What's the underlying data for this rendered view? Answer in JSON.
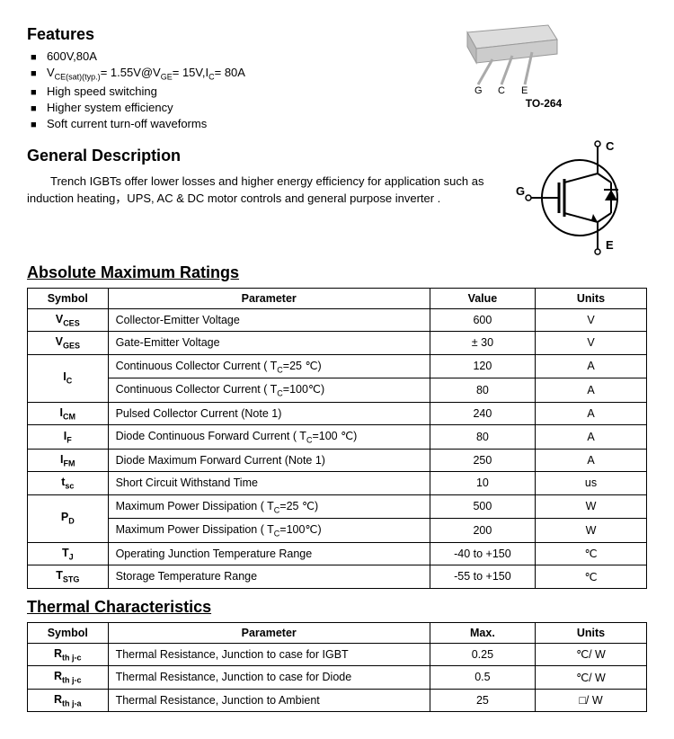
{
  "features": {
    "heading": "Features",
    "items": [
      "600V,80A",
      "V<CE(sat)(typ.)>= 1.55V@V<GE>= 15V,I<C>= 80A",
      "High speed switching",
      "Higher system efficiency",
      "Soft current turn-off waveforms"
    ]
  },
  "package": {
    "label": "TO-264",
    "pins": "G  C  E"
  },
  "gendesc": {
    "heading": "General Description",
    "text": "Trench IGBTs offer lower losses and higher energy efficiency for application such as induction heating，UPS, AC & DC motor controls and general purpose inverter ."
  },
  "symbol_pins": {
    "c": "C",
    "g": "G",
    "e": "E"
  },
  "amr": {
    "heading": "Absolute Maximum Ratings",
    "cols": [
      "Symbol",
      "Parameter",
      "Value",
      "Units"
    ],
    "rows": [
      {
        "sym": "V<CES>",
        "param": "Collector-Emitter Voltage",
        "val": "600",
        "unit": "V"
      },
      {
        "sym": "V<GES>",
        "param": "Gate-Emitter Voltage",
        "val": "± 30",
        "unit": "V"
      },
      {
        "sym": "I<C>",
        "rowspan": 2,
        "param": "Continuous Collector Current ( T<C>=25 ℃)",
        "val": "120",
        "unit": "A"
      },
      {
        "param": "Continuous Collector Current  ( T<C>=100℃)",
        "val": "80",
        "unit": "A"
      },
      {
        "sym": "I<CM>",
        "param": "Pulsed Collector Current (Note 1)",
        "val": "240",
        "unit": "A"
      },
      {
        "sym": "I<F>",
        "param": "Diode Continuous Forward Current ( T<C>=100 ℃)",
        "val": "80",
        "unit": "A"
      },
      {
        "sym": "I<FM>",
        "param": "Diode Maximum Forward Current (Note 1)",
        "val": "250",
        "unit": "A"
      },
      {
        "sym": "t<sc>",
        "param": "Short Circuit Withstand Time",
        "val": "10",
        "unit": "us"
      },
      {
        "sym": "P<D>",
        "rowspan": 2,
        "param": "Maximum Power Dissipation ( T<C>=25 ℃)",
        "val": "500",
        "unit": "W"
      },
      {
        "param": "Maximum Power Dissipation ( T<C>=100℃)",
        "val": "200",
        "unit": "W"
      },
      {
        "sym": "T<J>",
        "param": "Operating Junction Temperature Range",
        "val": "-40 to +150",
        "unit": "℃"
      },
      {
        "sym": "T<STG>",
        "param": "Storage Temperature Range",
        "val": "-55 to +150",
        "unit": "℃"
      }
    ]
  },
  "thermal": {
    "heading": "Thermal Characteristics",
    "cols": [
      "Symbol",
      "Parameter",
      "Max.",
      "Units"
    ],
    "rows": [
      {
        "sym": "R<th j-c>",
        "param": "Thermal Resistance, Junction to case for IGBT",
        "val": "0.25",
        "unit": "℃/ W"
      },
      {
        "sym": "R<th j-c>",
        "param": "Thermal Resistance, Junction to case for Diode",
        "val": "0.5",
        "unit": "℃/ W"
      },
      {
        "sym": "R<th j-a>",
        "param": "Thermal Resistance, Junction to Ambient",
        "val": "25",
        "unit": "□/ W"
      }
    ]
  },
  "style": {
    "table_border": "#000000",
    "text_color": "#000000",
    "bg": "#ffffff",
    "font_size_body": 13,
    "font_size_heading": 18
  }
}
